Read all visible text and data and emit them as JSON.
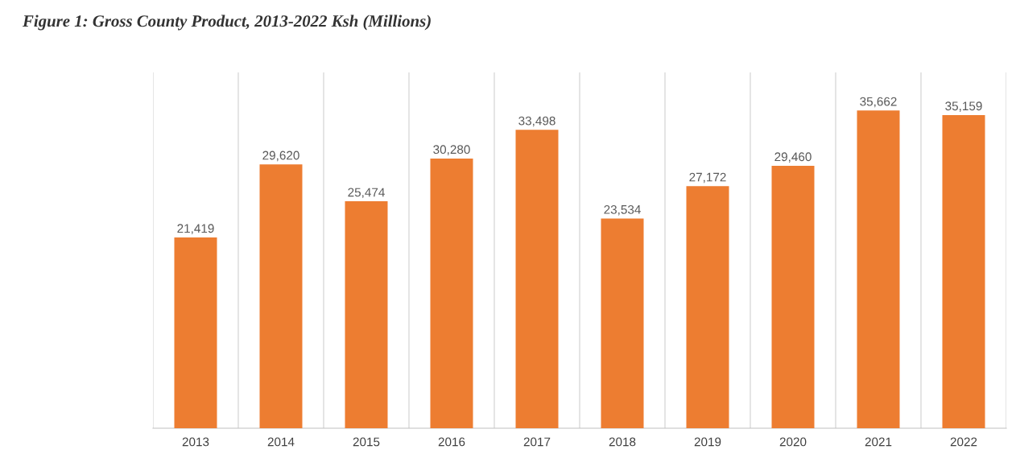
{
  "chart_data": {
    "type": "bar",
    "title": "Figure 1: Gross County Product, 2013-2022 Ksh (Millions)",
    "categories": [
      "2013",
      "2014",
      "2015",
      "2016",
      "2017",
      "2018",
      "2019",
      "2020",
      "2021",
      "2022"
    ],
    "values": [
      21419,
      29620,
      25474,
      30280,
      33498,
      23534,
      27172,
      29460,
      35662,
      35159
    ],
    "value_labels": [
      "21,419",
      "29,620",
      "25,474",
      "30,280",
      "33,498",
      "23,534",
      "27,172",
      "29,460",
      "35,662",
      "35,159"
    ],
    "color": "#ed7d31",
    "tick_labels": "x",
    "grid": "x"
  }
}
